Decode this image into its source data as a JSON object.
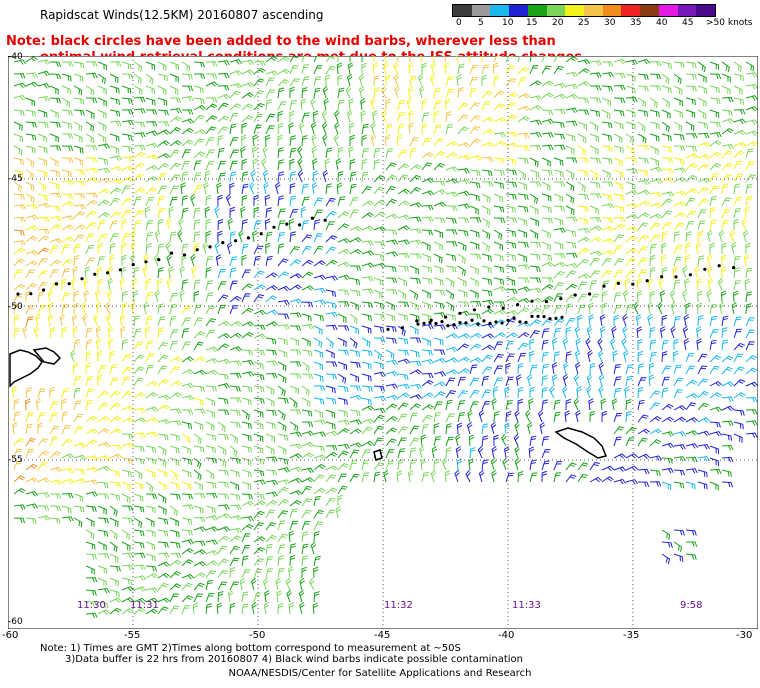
{
  "title": "Rapidscat Winds(12.5KM) 20160807 ascending",
  "note": {
    "line1": "Note: black circles have been added to the wind barbs, wherever less than",
    "line2": "optimal wind retrieval conditions are met due to the ISS attitude changes."
  },
  "legend": {
    "colors": [
      "#3c3c3c",
      "#9a9a9a",
      "#1ab8ec",
      "#2323d6",
      "#19a319",
      "#79d65a",
      "#f2f21a",
      "#f2c54a",
      "#f28c19",
      "#ee2424",
      "#8c3c14",
      "#e61ae6",
      "#7a1ab8",
      "#4a0a8c"
    ],
    "labels": [
      "0",
      "5",
      "10",
      "15",
      "20",
      "25",
      "30",
      "35",
      "40",
      "45",
      ">50 knots"
    ]
  },
  "lat_labels": [
    "-40",
    "-45",
    "-50",
    "-55",
    "-60"
  ],
  "lon_labels": [
    "-60",
    "-55",
    "-50",
    "-45",
    "-40",
    "-35",
    "-30"
  ],
  "times": [
    "11:30",
    "11:31",
    "11:32",
    "11:33",
    "9:58"
  ],
  "footnote": {
    "line1": "Note: 1) Times are GMT 2)Times along bottom correspond to measurement at ~50S",
    "line2": "3)Data buffer is 22 hrs from 20160807 4) Black wind barbs indicate possible contamination"
  },
  "credit": "NOAA/NESDIS/Center for Satellite Applications and Research"
}
